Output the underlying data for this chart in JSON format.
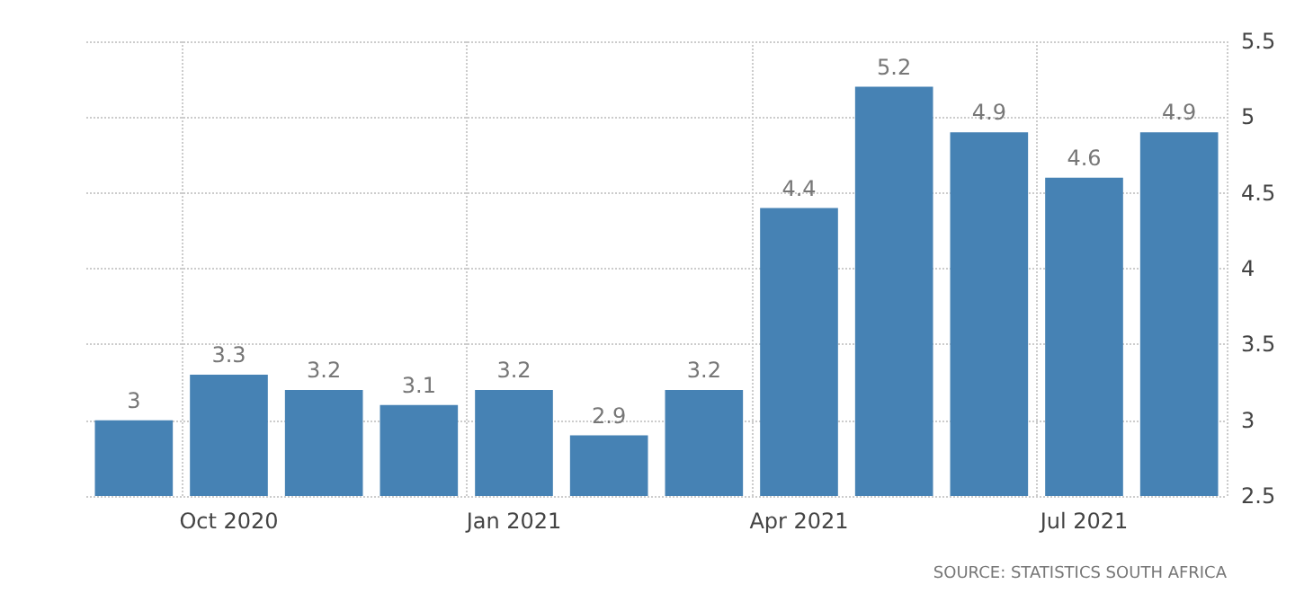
{
  "chart_data": {
    "type": "bar",
    "categories": [
      null,
      "Oct 2020",
      null,
      null,
      "Jan 2021",
      null,
      null,
      "Apr 2021",
      null,
      null,
      "Jul 2021",
      null
    ],
    "values": [
      3,
      3.3,
      3.2,
      3.1,
      3.2,
      2.9,
      3.2,
      4.4,
      5.2,
      4.9,
      4.6,
      4.9
    ],
    "color": "#4682b4",
    "ylim": [
      2.5,
      5.5
    ],
    "yticks": [
      2.5,
      3,
      3.5,
      4,
      4.5,
      5,
      5.5
    ],
    "grid": true,
    "data_labels": true,
    "annotations": [
      "SOURCE: STATISTICS SOUTH AFRICA"
    ]
  }
}
